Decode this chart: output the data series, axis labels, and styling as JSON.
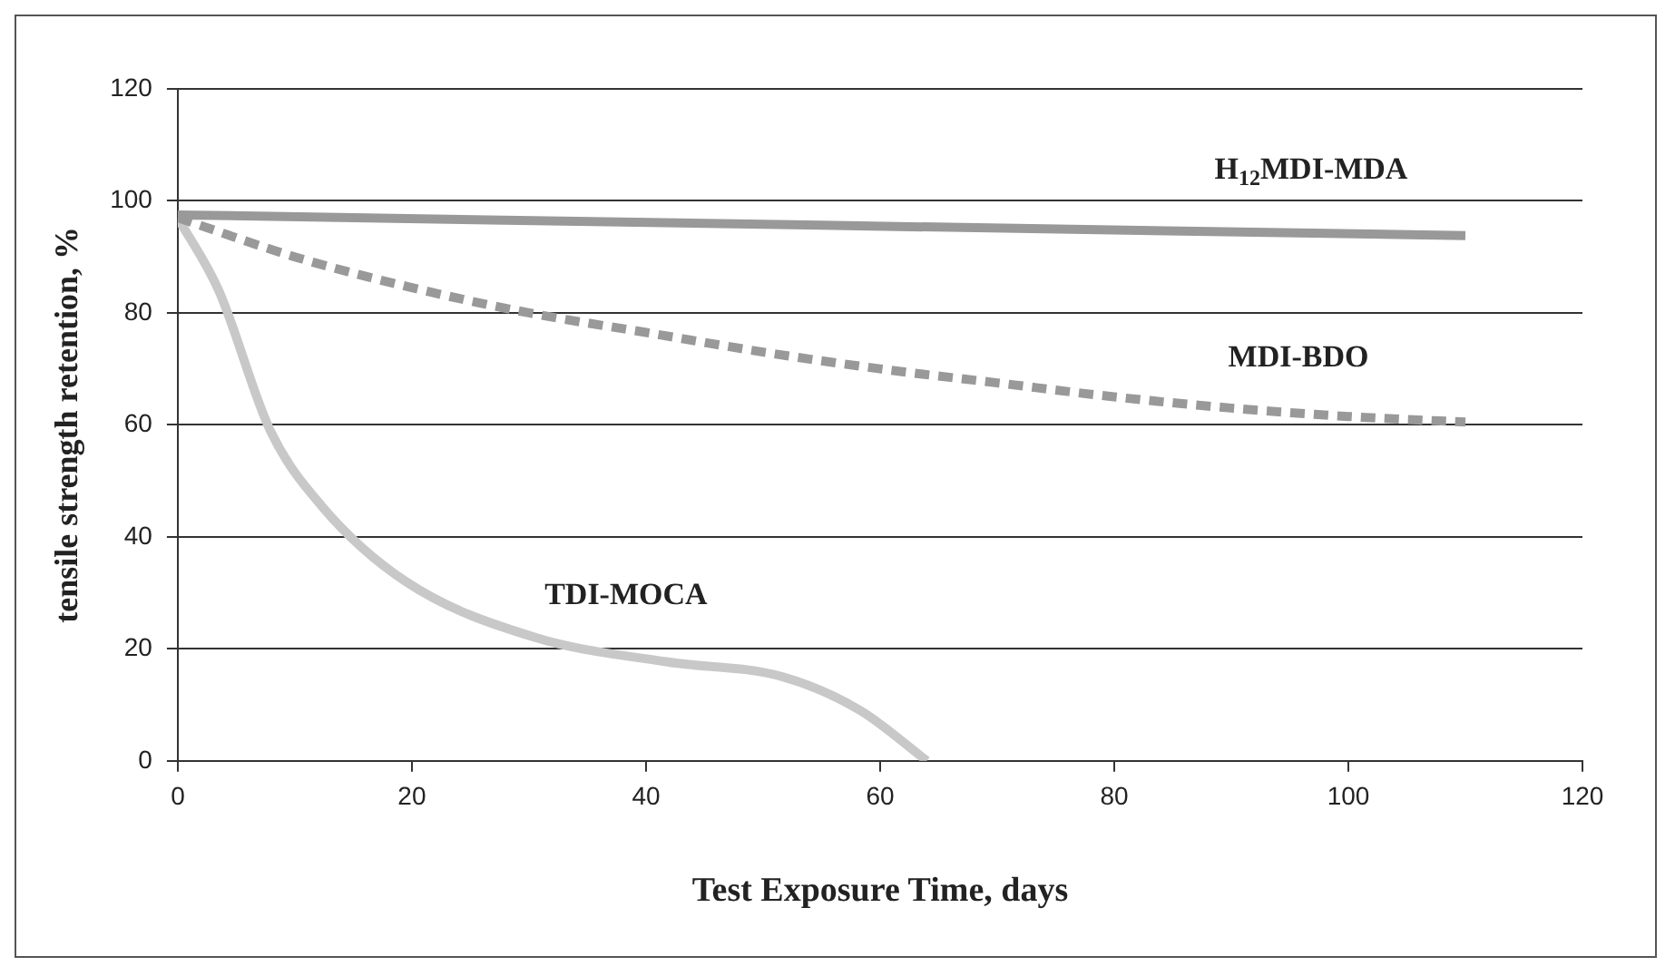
{
  "chart_data": {
    "type": "line",
    "xlabel": "Test Exposure Time, days",
    "ylabel": "tensile strength retention, %",
    "xlim": [
      0,
      120
    ],
    "xticks": [
      0,
      20,
      40,
      60,
      80,
      100,
      120
    ],
    "ylim": [
      0,
      120
    ],
    "yticks": [
      0,
      20,
      40,
      60,
      80,
      100,
      120
    ],
    "grid": "y",
    "legend": false,
    "marker": "none",
    "series": [
      {
        "name": "H$_{12}$MDI-MDA",
        "color": "#999999",
        "line_style": "solid",
        "x": [
          0,
          110
        ],
        "values": [
          97.5,
          93.8
        ]
      },
      {
        "name": "MDI-BDO",
        "color": "#999999",
        "line_style": "dashed",
        "x": [
          0,
          10,
          20,
          30,
          40,
          50,
          60,
          70,
          80,
          90,
          100,
          110
        ],
        "values": [
          97,
          90,
          84.5,
          80,
          76.5,
          73,
          70,
          67.5,
          65,
          63,
          61.5,
          60.5
        ]
      },
      {
        "name": "TDI-MOCA",
        "color": "#c8c8c8",
        "line_style": "solid",
        "x": [
          0,
          3.5,
          7.9,
          12.3,
          19.5,
          30.6,
          41.7,
          51.7,
          58.3,
          64
        ],
        "values": [
          97,
          84,
          59,
          45.5,
          32,
          22,
          17.7,
          15,
          9,
          0
        ]
      }
    ]
  }
}
